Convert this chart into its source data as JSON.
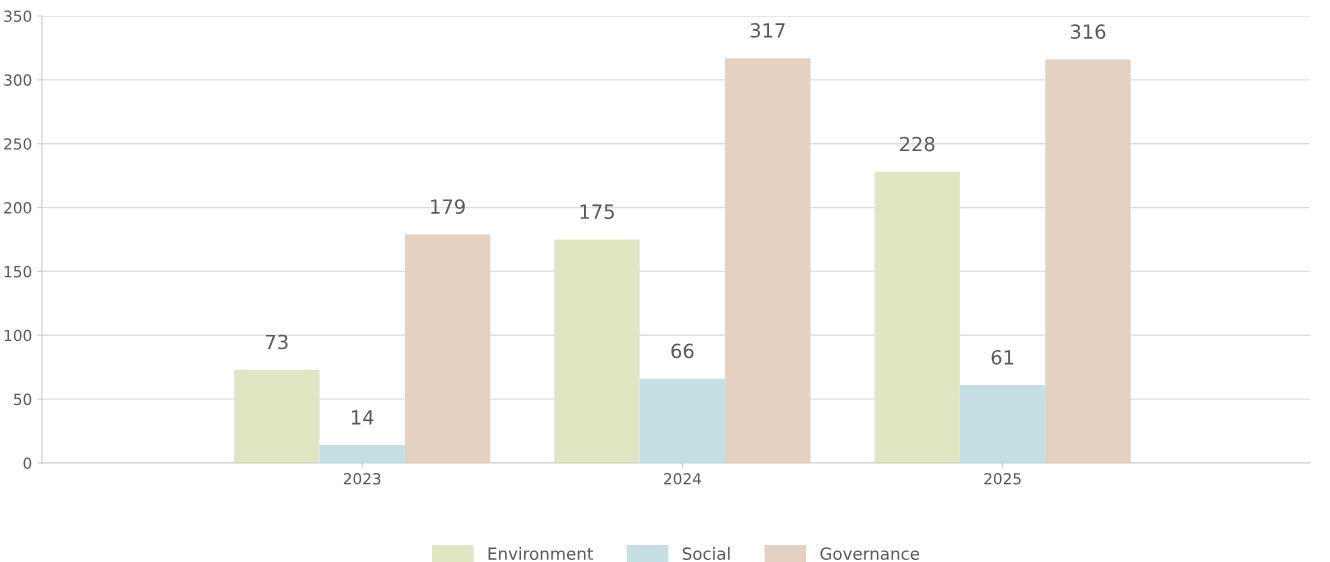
{
  "chart_data": {
    "type": "bar",
    "categories": [
      "2023",
      "2024",
      "2025"
    ],
    "series": [
      {
        "name": "Environment",
        "color": "#e1e6c2",
        "values": [
          73,
          175,
          228
        ]
      },
      {
        "name": "Social",
        "color": "#c4e0e5",
        "values": [
          14,
          66,
          61
        ]
      },
      {
        "name": "Governance",
        "color": "#e5d1c2",
        "values": [
          179,
          317,
          316
        ]
      }
    ],
    "ylim": [
      0,
      350
    ],
    "yticks": [
      0,
      50,
      100,
      150,
      200,
      250,
      300,
      350
    ],
    "grid": "y",
    "legend": "bottom",
    "data_labels": true
  }
}
